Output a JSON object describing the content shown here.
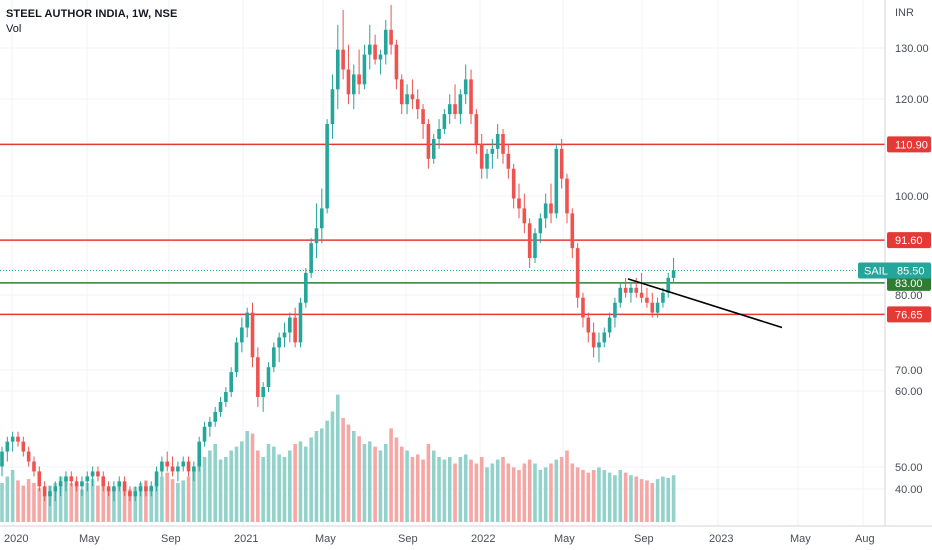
{
  "header": {
    "title": "STEEL AUTHOR INDIA, 1W, NSE",
    "volume_label": "Vol"
  },
  "price_axis": {
    "currency": "INR",
    "ticks": [
      "130.00",
      "120.00",
      "100.00",
      "80.00",
      "70.00",
      "60.00",
      "50.00",
      "40.00"
    ]
  },
  "time_axis": {
    "labels": [
      "2020",
      "May",
      "Sep",
      "2021",
      "May",
      "Sep",
      "2022",
      "May",
      "Sep",
      "2023",
      "May",
      "Aug"
    ]
  },
  "levels": [
    {
      "price": "110.90",
      "color": "#e53935",
      "label": "110.90"
    },
    {
      "price": "91.60",
      "color": "#e53935",
      "label": "91.60"
    },
    {
      "price": "83.00",
      "color": "#2e7d32",
      "label": "83.00"
    },
    {
      "price": "76.65",
      "color": "#e53935",
      "label": "76.65"
    }
  ],
  "last_price": {
    "symbol": "SAIL",
    "value": "85.50",
    "color": "#26a69a"
  },
  "colors": {
    "up": "#26a69a",
    "down": "#ef5350",
    "vol_up": "#93d2cb",
    "vol_down": "#f5a7a5",
    "grid": "#f0f3fa",
    "trendline": "#000000"
  },
  "trendline": {
    "from": {
      "date": "2022-09",
      "price": 83.8
    },
    "to": {
      "date": "2023-05",
      "price": 74.0
    }
  },
  "chart_data": {
    "type": "candlestick",
    "title": "STEEL AUTHOR INDIA, 1W, NSE",
    "y_unit": "INR",
    "ylim": [
      34,
      140
    ],
    "x_range": [
      "2019-12",
      "2023-09"
    ],
    "annotations": [
      "110.90",
      "91.60",
      "83.00",
      "76.65"
    ],
    "last_value": 85.5,
    "candles": [
      [
        46,
        50,
        44,
        49
      ],
      [
        49,
        52,
        47,
        51
      ],
      [
        51,
        53,
        49,
        52
      ],
      [
        52,
        53,
        50,
        51
      ],
      [
        51,
        52,
        48,
        49
      ],
      [
        49,
        50,
        46,
        47
      ],
      [
        47,
        48,
        44,
        45
      ],
      [
        45,
        46,
        41,
        42
      ],
      [
        42,
        43,
        39,
        40
      ],
      [
        40,
        42,
        38,
        41
      ],
      [
        41,
        43,
        39,
        42
      ],
      [
        42,
        44,
        40,
        43
      ],
      [
        43,
        45,
        41,
        44
      ],
      [
        44,
        45,
        42,
        43
      ],
      [
        43,
        44,
        41,
        42
      ],
      [
        42,
        44,
        40,
        43
      ],
      [
        43,
        45,
        41,
        44
      ],
      [
        44,
        46,
        42,
        45
      ],
      [
        45,
        46,
        43,
        44
      ],
      [
        44,
        45,
        41,
        42
      ],
      [
        42,
        43,
        40,
        41
      ],
      [
        41,
        43,
        39,
        42
      ],
      [
        42,
        44,
        41,
        43
      ],
      [
        43,
        44,
        40,
        41
      ],
      [
        41,
        42,
        39,
        40
      ],
      [
        40,
        42,
        39,
        41
      ],
      [
        41,
        43,
        40,
        42
      ],
      [
        42,
        43,
        40,
        41
      ],
      [
        41,
        43,
        40,
        42
      ],
      [
        42,
        46,
        41,
        45
      ],
      [
        45,
        48,
        44,
        47
      ],
      [
        47,
        49,
        45,
        46
      ],
      [
        46,
        48,
        44,
        45
      ],
      [
        45,
        47,
        43,
        46
      ],
      [
        46,
        48,
        45,
        47
      ],
      [
        47,
        48,
        44,
        45
      ],
      [
        45,
        47,
        43,
        46
      ],
      [
        46,
        52,
        45,
        51
      ],
      [
        51,
        55,
        50,
        54
      ],
      [
        54,
        56,
        52,
        55
      ],
      [
        55,
        58,
        54,
        57
      ],
      [
        57,
        60,
        56,
        59
      ],
      [
        59,
        62,
        58,
        61
      ],
      [
        61,
        66,
        60,
        65
      ],
      [
        65,
        72,
        64,
        71
      ],
      [
        71,
        76,
        69,
        74
      ],
      [
        74,
        78,
        72,
        77
      ],
      [
        77,
        79,
        66,
        68
      ],
      [
        68,
        70,
        58,
        60
      ],
      [
        60,
        63,
        57,
        62
      ],
      [
        62,
        67,
        61,
        66
      ],
      [
        66,
        71,
        65,
        70
      ],
      [
        70,
        73,
        67,
        72
      ],
      [
        72,
        75,
        70,
        73
      ],
      [
        73,
        77,
        71,
        76
      ],
      [
        76,
        78,
        70,
        71
      ],
      [
        71,
        80,
        70,
        79
      ],
      [
        79,
        86,
        78,
        85
      ],
      [
        85,
        92,
        84,
        91
      ],
      [
        91,
        99,
        88,
        94
      ],
      [
        94,
        102,
        91,
        98
      ],
      [
        98,
        116,
        97,
        115
      ],
      [
        115,
        125,
        112,
        122
      ],
      [
        122,
        135,
        118,
        130
      ],
      [
        130,
        138,
        124,
        126
      ],
      [
        126,
        131,
        119,
        121
      ],
      [
        121,
        127,
        118,
        125
      ],
      [
        125,
        130,
        121,
        123
      ],
      [
        123,
        131,
        122,
        129
      ],
      [
        129,
        135,
        126,
        131
      ],
      [
        131,
        133,
        127,
        128
      ],
      [
        128,
        130,
        125,
        129
      ],
      [
        129,
        136,
        127,
        134
      ],
      [
        134,
        139,
        129,
        131
      ],
      [
        131,
        132,
        122,
        124
      ],
      [
        124,
        125,
        117,
        119
      ],
      [
        119,
        123,
        117,
        121
      ],
      [
        121,
        124,
        118,
        120
      ],
      [
        120,
        122,
        116,
        118
      ],
      [
        118,
        119,
        112,
        115
      ],
      [
        115,
        116,
        106,
        108
      ],
      [
        108,
        113,
        107,
        112
      ],
      [
        112,
        116,
        110,
        114
      ],
      [
        114,
        118,
        113,
        117
      ],
      [
        117,
        121,
        115,
        119
      ],
      [
        119,
        123,
        116,
        117
      ],
      [
        117,
        122,
        115,
        121
      ],
      [
        121,
        127,
        119,
        124
      ],
      [
        124,
        126,
        115,
        117
      ],
      [
        117,
        118,
        109,
        111
      ],
      [
        111,
        113,
        104,
        106
      ],
      [
        106,
        110,
        104,
        109
      ],
      [
        109,
        112,
        106,
        110
      ],
      [
        110,
        115,
        108,
        113
      ],
      [
        113,
        114,
        107,
        109
      ],
      [
        109,
        111,
        104,
        106
      ],
      [
        106,
        107,
        98,
        100
      ],
      [
        100,
        103,
        96,
        98
      ],
      [
        98,
        101,
        93,
        95
      ],
      [
        95,
        96,
        86,
        88
      ],
      [
        88,
        94,
        87,
        93
      ],
      [
        93,
        97,
        91,
        96
      ],
      [
        96,
        101,
        94,
        99
      ],
      [
        99,
        103,
        95,
        97
      ],
      [
        97,
        111,
        96,
        110
      ],
      [
        110,
        112,
        102,
        104
      ],
      [
        104,
        105,
        95,
        97
      ],
      [
        97,
        98,
        88,
        90
      ],
      [
        90,
        91,
        78,
        80
      ],
      [
        80,
        81,
        74,
        76
      ],
      [
        76,
        77,
        71,
        73
      ],
      [
        73,
        75,
        68,
        70
      ],
      [
        70,
        73,
        67,
        71
      ],
      [
        71,
        74,
        70,
        73
      ],
      [
        73,
        77,
        72,
        76
      ],
      [
        76,
        80,
        74,
        79
      ],
      [
        79,
        83,
        78,
        82
      ],
      [
        82,
        84,
        80,
        81
      ],
      [
        81,
        83,
        79,
        82
      ],
      [
        82,
        84,
        80,
        81
      ],
      [
        81,
        85,
        79,
        80
      ],
      [
        80,
        82,
        78,
        79
      ],
      [
        79,
        81,
        76,
        77
      ],
      [
        77,
        80,
        76,
        79
      ],
      [
        79,
        82,
        78,
        81
      ],
      [
        81,
        85,
        80,
        84
      ],
      [
        84,
        88,
        83,
        85.5
      ]
    ],
    "volume_scale": "relative",
    "volume": [
      0.3,
      0.35,
      0.4,
      0.32,
      0.28,
      0.33,
      0.3,
      0.26,
      0.22,
      0.28,
      0.3,
      0.35,
      0.33,
      0.3,
      0.28,
      0.25,
      0.3,
      0.33,
      0.28,
      0.3,
      0.26,
      0.25,
      0.3,
      0.28,
      0.25,
      0.27,
      0.3,
      0.32,
      0.28,
      0.3,
      0.35,
      0.38,
      0.33,
      0.3,
      0.32,
      0.35,
      0.4,
      0.45,
      0.5,
      0.55,
      0.6,
      0.48,
      0.5,
      0.55,
      0.58,
      0.62,
      0.7,
      0.68,
      0.55,
      0.5,
      0.6,
      0.58,
      0.52,
      0.5,
      0.55,
      0.6,
      0.62,
      0.58,
      0.65,
      0.7,
      0.72,
      0.78,
      0.85,
      0.98,
      0.8,
      0.75,
      0.7,
      0.66,
      0.6,
      0.62,
      0.58,
      0.55,
      0.6,
      0.72,
      0.65,
      0.58,
      0.55,
      0.5,
      0.52,
      0.48,
      0.6,
      0.55,
      0.5,
      0.48,
      0.5,
      0.45,
      0.5,
      0.52,
      0.48,
      0.45,
      0.5,
      0.42,
      0.45,
      0.48,
      0.5,
      0.45,
      0.42,
      0.4,
      0.45,
      0.48,
      0.45,
      0.4,
      0.42,
      0.45,
      0.48,
      0.5,
      0.55,
      0.45,
      0.42,
      0.4,
      0.38,
      0.4,
      0.42,
      0.4,
      0.38,
      0.36,
      0.4,
      0.38,
      0.36,
      0.35,
      0.33,
      0.32,
      0.3,
      0.33,
      0.35,
      0.34,
      0.36
    ]
  }
}
